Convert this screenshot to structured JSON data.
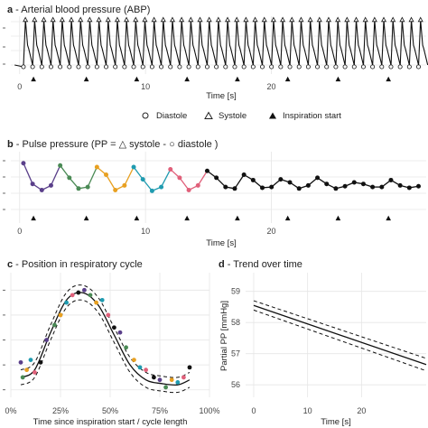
{
  "figure": {
    "panel_a": {
      "letter": "a",
      "title": " - Arterial blood pressure (ABP)"
    },
    "panel_b": {
      "letter": "b",
      "title": " - Pulse pressure  (PP = △ systole - ○ diastole )"
    },
    "panel_c": {
      "letter": "c",
      "title": " - Position in respiratory cycle"
    },
    "panel_d": {
      "letter": "d",
      "title": " - Trend over time"
    },
    "legend": {
      "diastole": "Diastole",
      "systole": "Systole",
      "inspiration": "Inspiration start"
    },
    "colors": {
      "line": "#111111",
      "dashed": "#111111",
      "grid": "#e6e6e6",
      "cycles": [
        "#5a3f8a",
        "#4a8a55",
        "#e8a020",
        "#1f9bb0",
        "#e0607a"
      ]
    }
  },
  "chart_data": [
    {
      "type": "line",
      "panel": "a",
      "title": "Arterial blood pressure (ABP)",
      "xlabel": "Time [s]",
      "ylabel": "",
      "xlim": [
        -0.7,
        32.3
      ],
      "xticks": [
        0,
        10,
        20
      ],
      "tick_labels": [
        "0",
        "10",
        "20"
      ],
      "beat_interval_s": 0.73,
      "first_beat_s": 0.3,
      "inspiration_starts_s": [
        1.1,
        5.3,
        9.3,
        13.3,
        17.3,
        21.3,
        25.3,
        29.3
      ],
      "series": [
        {
          "name": "ABP",
          "description": "periodic arterial pressure waveform with marked diastole (circles) and systole (triangles)"
        }
      ]
    },
    {
      "type": "line",
      "panel": "b",
      "title": "Pulse pressure",
      "xlabel": "Time [s]",
      "ylabel": "",
      "xlim": [
        -0.7,
        32.3
      ],
      "ylim": [
        54,
        62
      ],
      "xticks": [
        0,
        10,
        20
      ],
      "tick_labels": [
        "0",
        "10",
        "20"
      ],
      "x": [
        0.3,
        1.03,
        1.76,
        2.49,
        3.22,
        3.95,
        4.68,
        5.41,
        6.14,
        6.87,
        7.6,
        8.33,
        9.06,
        9.79,
        10.52,
        11.25,
        11.98,
        12.71,
        13.44,
        14.17,
        14.9,
        15.63,
        16.36,
        17.09,
        17.82,
        18.55,
        19.28,
        20.01,
        20.74,
        21.47,
        22.2,
        22.93,
        23.66,
        24.39,
        25.12,
        25.85,
        26.58,
        27.31,
        28.04,
        28.77,
        29.5,
        30.23,
        30.96,
        31.69
      ],
      "y": [
        60.5,
        57.8,
        57.0,
        57.6,
        60.2,
        58.6,
        57.2,
        57.4,
        60.0,
        59.0,
        57.0,
        57.6,
        60.0,
        58.4,
        56.9,
        57.4,
        59.7,
        58.6,
        57.0,
        57.6,
        59.5,
        58.6,
        57.4,
        57.2,
        59.0,
        58.3,
        57.3,
        57.4,
        58.4,
        58.0,
        57.2,
        57.6,
        58.6,
        57.8,
        57.2,
        57.5,
        58.0,
        57.8,
        57.4,
        57.4,
        58.3,
        57.6,
        57.3,
        57.5
      ],
      "cycle_colors_index": [
        0,
        0,
        0,
        0,
        1,
        1,
        1,
        1,
        2,
        2,
        2,
        2,
        3,
        3,
        3,
        3,
        4,
        4,
        4,
        4,
        -1
      ],
      "inspiration_starts_s": [
        1.1,
        5.3,
        9.3,
        13.3,
        17.3,
        21.3,
        25.3,
        29.3
      ]
    },
    {
      "type": "scatter",
      "panel": "c",
      "title": "Position in respiratory cycle",
      "xlabel": "Time since inspiration start / cycle length",
      "ylabel": "",
      "xlim": [
        0,
        1
      ],
      "ylim": [
        -2.3,
        2.7
      ],
      "xticks": [
        0,
        0.25,
        0.5,
        0.75,
        1.0
      ],
      "tick_labels": [
        "0%",
        "25%",
        "50%",
        "75%",
        "100%"
      ],
      "fit": {
        "x": [
          0.05,
          0.12,
          0.2,
          0.28,
          0.36,
          0.44,
          0.52,
          0.6,
          0.68,
          0.76,
          0.84,
          0.9
        ],
        "y": [
          -1.5,
          -1.2,
          0.3,
          1.6,
          1.9,
          1.4,
          0.2,
          -1.0,
          -1.6,
          -1.75,
          -1.8,
          -1.6
        ]
      },
      "points": {
        "x": [
          0.05,
          0.06,
          0.08,
          0.1,
          0.12,
          0.15,
          0.18,
          0.22,
          0.25,
          0.28,
          0.31,
          0.34,
          0.37,
          0.4,
          0.43,
          0.46,
          0.49,
          0.52,
          0.55,
          0.58,
          0.62,
          0.65,
          0.68,
          0.72,
          0.75,
          0.78,
          0.81,
          0.84,
          0.87,
          0.9
        ],
        "y": [
          -0.9,
          -1.5,
          -1.2,
          -0.8,
          -1.3,
          -0.9,
          0.0,
          0.6,
          1.0,
          1.5,
          1.8,
          1.9,
          2.0,
          1.8,
          1.5,
          1.6,
          1.0,
          0.5,
          0.3,
          -0.3,
          -0.8,
          -1.1,
          -1.2,
          -1.5,
          -1.6,
          -1.9,
          -1.6,
          -1.7,
          -1.5,
          -1.1
        ]
      }
    },
    {
      "type": "line",
      "panel": "d",
      "title": "Trend over time",
      "xlabel": "Time [s]",
      "ylabel": "Partial PP [mmHg]",
      "xlim": [
        -1.5,
        32
      ],
      "ylim": [
        55.6,
        59.6
      ],
      "xticks": [
        0,
        10,
        20
      ],
      "tick_labels": [
        "0",
        "10",
        "20"
      ],
      "yticks": [
        56,
        57,
        58,
        59
      ],
      "ytick_labels": [
        "56",
        "57",
        "58",
        "59"
      ],
      "series": [
        {
          "name": "fit",
          "x": [
            0,
            32
          ],
          "y": [
            58.55,
            56.65
          ]
        },
        {
          "name": "upper",
          "x": [
            0,
            32
          ],
          "y": [
            58.7,
            56.85
          ]
        },
        {
          "name": "lower",
          "x": [
            0,
            32
          ],
          "y": [
            58.4,
            56.45
          ]
        }
      ]
    }
  ]
}
